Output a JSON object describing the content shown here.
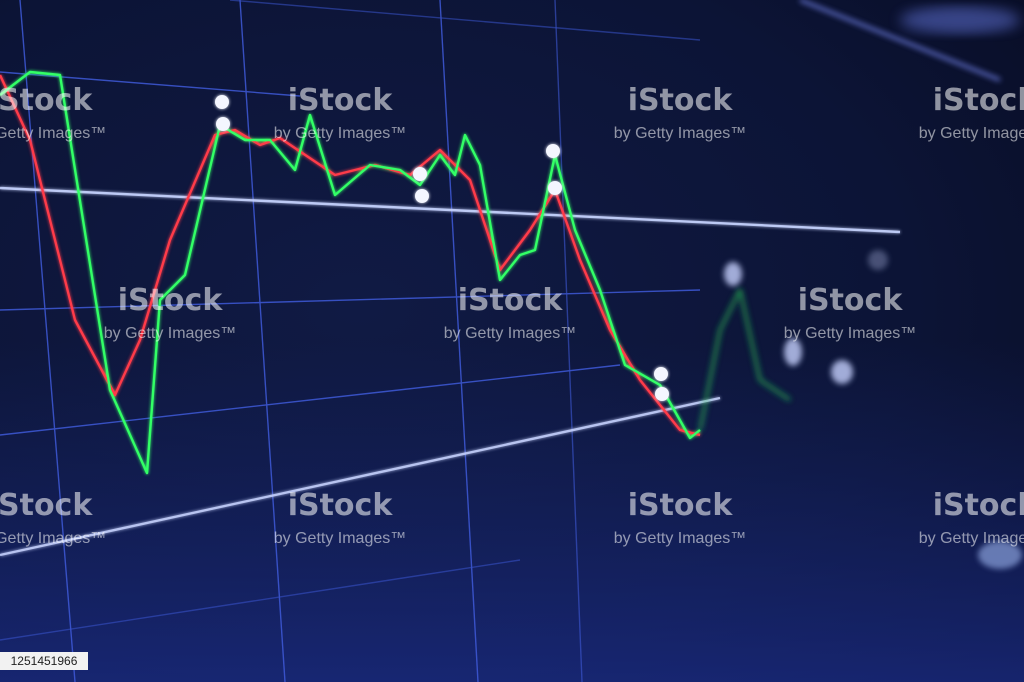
{
  "watermark": {
    "brand": "iStock",
    "credit": "by Getty Images™"
  },
  "image_id": "1251451966"
}
